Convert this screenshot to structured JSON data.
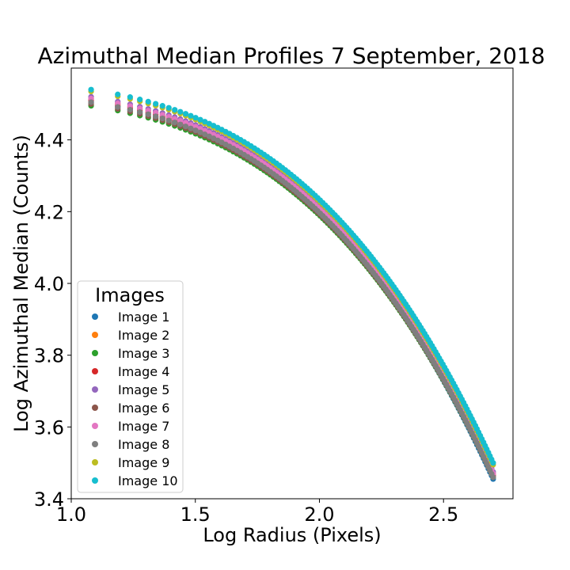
{
  "chart_data": {
    "type": "scatter",
    "title": "Azimuthal Median Profiles 7 September, 2018",
    "xlabel": "Log Radius (Pixels)",
    "ylabel": "Log Azimuthal Median (Counts)",
    "xlim": [
      1.0,
      2.78
    ],
    "ylim": [
      3.4,
      4.6
    ],
    "xticks": [
      1.0,
      1.5,
      2.0,
      2.5
    ],
    "xtick_labels": [
      "1.0",
      "1.5",
      "2.0",
      "2.5"
    ],
    "yticks": [
      3.4,
      3.6,
      3.8,
      4.0,
      4.2,
      4.4
    ],
    "ytick_labels": [
      "3.4",
      "3.6",
      "3.8",
      "4.0",
      "4.2",
      "4.4"
    ],
    "grid": false,
    "legend": {
      "title": "Images",
      "placement": "lower-left"
    },
    "x_range": [
      1.08,
      2.7
    ],
    "series": [
      {
        "name": "Image 1",
        "color": "#1f77b4",
        "start": 4.505,
        "end": 3.455
      },
      {
        "name": "Image 2",
        "color": "#ff7f0e",
        "start": 4.515,
        "end": 3.47
      },
      {
        "name": "Image 3",
        "color": "#2ca02c",
        "start": 4.495,
        "end": 3.46
      },
      {
        "name": "Image 4",
        "color": "#d62728",
        "start": 4.51,
        "end": 3.465
      },
      {
        "name": "Image 5",
        "color": "#9467bd",
        "start": 4.52,
        "end": 3.475
      },
      {
        "name": "Image 6",
        "color": "#8c564b",
        "start": 4.5,
        "end": 3.46
      },
      {
        "name": "Image 7",
        "color": "#e377c2",
        "start": 4.515,
        "end": 3.47
      },
      {
        "name": "Image 8",
        "color": "#7f7f7f",
        "start": 4.505,
        "end": 3.46
      },
      {
        "name": "Image 9",
        "color": "#bcbd22",
        "start": 4.535,
        "end": 3.495
      },
      {
        "name": "Image 10",
        "color": "#17becf",
        "start": 4.54,
        "end": 3.5
      }
    ]
  }
}
